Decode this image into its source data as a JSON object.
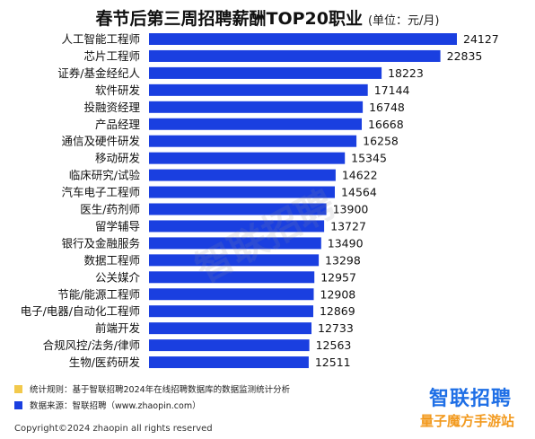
{
  "header": {
    "title": "春节后第三周招聘薪酬TOP20职业",
    "unit": "(单位：元/月)"
  },
  "chart_data": {
    "type": "bar",
    "orientation": "horizontal",
    "categories": [
      "人工智能工程师",
      "芯片工程师",
      "证券/基金经纪人",
      "软件研发",
      "投融资经理",
      "产品经理",
      "通信及硬件研发",
      "移动研发",
      "临床研究/试验",
      "汽车电子工程师",
      "医生/药剂师",
      "留学辅导",
      "银行及金融服务",
      "数据工程师",
      "公关媒介",
      "节能/能源工程师",
      "电子/电器/自动化工程师",
      "前端开发",
      "合规风控/法务/律师",
      "生物/医药研发"
    ],
    "values": [
      24127,
      22835,
      18223,
      17144,
      16748,
      16668,
      16258,
      15345,
      14622,
      14564,
      13900,
      13727,
      13490,
      13298,
      12957,
      12908,
      12869,
      12733,
      12563,
      12511
    ],
    "bar_color": "#1a3fe0",
    "xlim": [
      0,
      24127
    ],
    "data_labels": true,
    "grid": false
  },
  "footnotes": [
    {
      "label": "统计规则：基于智联招聘2024年在线招聘数据库的数据监测统计分析",
      "color": "#f2c94c"
    },
    {
      "label": "数据来源：智联招聘（www.zhaopin.com）",
      "color": "#1a3fe0"
    }
  ],
  "copyright": "Copyright©2024 zhaopin all rights reserved",
  "logo": "智联招聘",
  "watermarks": {
    "corner": "量子魔方手游站",
    "diagonal": "智联招聘"
  }
}
